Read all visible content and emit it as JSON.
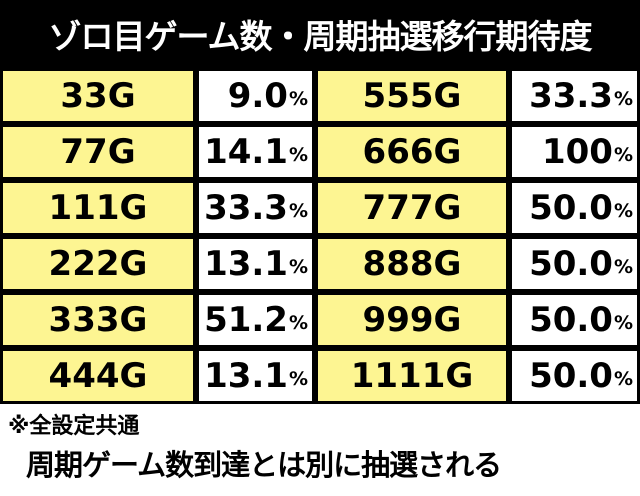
{
  "title": "ゾロ目ゲーム数・周期抽選移行期待度",
  "rows": [
    {
      "g1": "33G",
      "r1": "9.0",
      "g2": "555G",
      "r2": "33.3"
    },
    {
      "g1": "77G",
      "r1": "14.1",
      "g2": "666G",
      "r2": "100"
    },
    {
      "g1": "111G",
      "r1": "33.3",
      "g2": "777G",
      "r2": "50.0"
    },
    {
      "g1": "222G",
      "r1": "13.1",
      "g2": "888G",
      "r2": "50.0"
    },
    {
      "g1": "333G",
      "r1": "51.2",
      "g2": "999G",
      "r2": "50.0"
    },
    {
      "g1": "444G",
      "r1": "13.1",
      "g2": "1111G",
      "r2": "50.0"
    }
  ],
  "percent_sign": "%",
  "notes": {
    "line1": "※全設定共通",
    "line2": "周期ゲーム数到達とは別に抽選される"
  },
  "colors": {
    "header_bg": "#000000",
    "game_cell_bg": "#fdf592",
    "rate_cell_bg": "#ffffff"
  }
}
